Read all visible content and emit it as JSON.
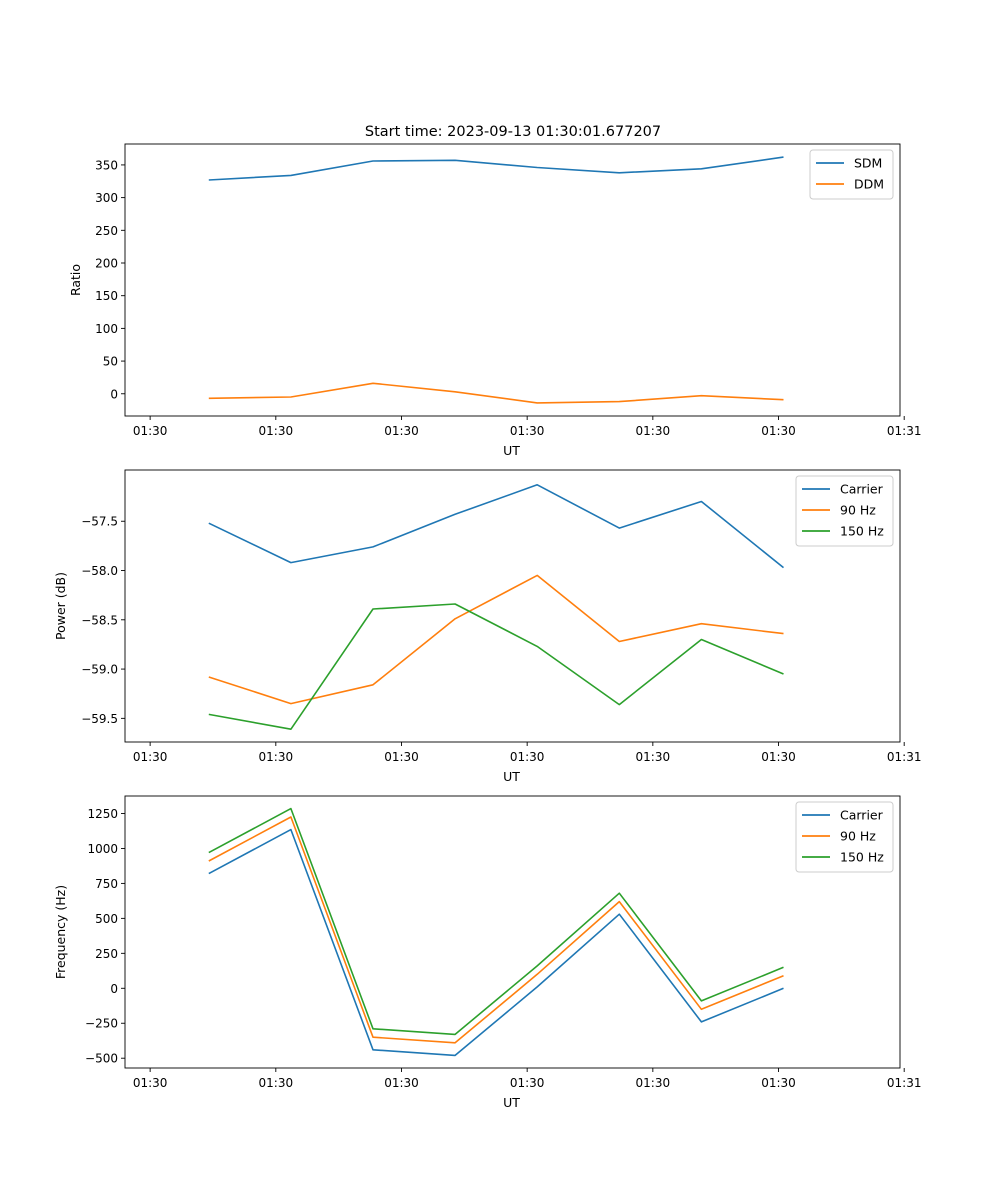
{
  "figure": {
    "title": "Start time: 2023-09-13 01:30:01.677207"
  },
  "chart_data": [
    {
      "type": "line",
      "title": "Start time: 2023-09-13 01:30:01.677207",
      "xlabel": "UT",
      "ylabel": "Ratio",
      "xlim": [
        -0.3,
        8.95
      ],
      "ylim": [
        -34,
        382
      ],
      "xticks": [
        0,
        1.5,
        3,
        4.5,
        6,
        7.5,
        9
      ],
      "xtick_labels": [
        "01:30",
        "01:30",
        "01:30",
        "01:30",
        "01:30",
        "01:30",
        "01:31"
      ],
      "yticks": [
        0,
        50,
        100,
        150,
        200,
        250,
        300,
        350
      ],
      "ytick_labels": [
        "0",
        "50",
        "100",
        "150",
        "200",
        "250",
        "300",
        "350"
      ],
      "legend": "top-right",
      "x": [
        0.7,
        1.68,
        2.66,
        3.64,
        4.62,
        5.6,
        6.58,
        7.56
      ],
      "series": [
        {
          "name": "SDM",
          "color": "#1f77b4",
          "values": [
            327,
            334,
            356,
            357,
            346,
            338,
            344,
            362
          ]
        },
        {
          "name": "DDM",
          "color": "#ff7f0e",
          "values": [
            -7,
            -5,
            16,
            3,
            -14,
            -12,
            -3,
            -9
          ]
        }
      ]
    },
    {
      "type": "line",
      "xlabel": "UT",
      "ylabel": "Power (dB)",
      "xlim": [
        -0.3,
        8.95
      ],
      "ylim": [
        -59.74,
        -56.98
      ],
      "xticks": [
        0,
        1.5,
        3,
        4.5,
        6,
        7.5,
        9
      ],
      "xtick_labels": [
        "01:30",
        "01:30",
        "01:30",
        "01:30",
        "01:30",
        "01:30",
        "01:31"
      ],
      "yticks": [
        -59.5,
        -59.0,
        -58.5,
        -58.0,
        -57.5
      ],
      "ytick_labels": [
        "−59.5",
        "−59.0",
        "−58.5",
        "−58.0",
        "−57.5"
      ],
      "legend": "top-right",
      "x": [
        0.7,
        1.68,
        2.66,
        3.64,
        4.62,
        5.6,
        6.58,
        7.56
      ],
      "series": [
        {
          "name": "Carrier",
          "color": "#1f77b4",
          "values": [
            -57.52,
            -57.92,
            -57.76,
            -57.43,
            -57.13,
            -57.57,
            -57.3,
            -57.97
          ]
        },
        {
          "name": "90 Hz",
          "color": "#ff7f0e",
          "values": [
            -59.08,
            -59.35,
            -59.16,
            -58.49,
            -58.05,
            -58.72,
            -58.54,
            -58.64
          ]
        },
        {
          "name": "150 Hz",
          "color": "#2ca02c",
          "values": [
            -59.46,
            -59.61,
            -58.39,
            -58.34,
            -58.77,
            -59.36,
            -58.7,
            -59.05
          ]
        }
      ]
    },
    {
      "type": "line",
      "xlabel": "UT",
      "ylabel": "Frequency (Hz)",
      "xlim": [
        -0.3,
        8.95
      ],
      "ylim": [
        -570,
        1375
      ],
      "xticks": [
        0,
        1.5,
        3,
        4.5,
        6,
        7.5,
        9
      ],
      "xtick_labels": [
        "01:30",
        "01:30",
        "01:30",
        "01:30",
        "01:30",
        "01:30",
        "01:31"
      ],
      "yticks": [
        -500,
        -250,
        0,
        250,
        500,
        750,
        1000,
        1250
      ],
      "ytick_labels": [
        "−500",
        "−250",
        "0",
        "250",
        "500",
        "750",
        "1000",
        "1250"
      ],
      "legend": "top-right",
      "x": [
        0.7,
        1.68,
        2.66,
        3.64,
        4.62,
        5.6,
        6.58,
        7.56
      ],
      "series": [
        {
          "name": "Carrier",
          "color": "#1f77b4",
          "values": [
            820,
            1135,
            -440,
            -480,
            10,
            530,
            -240,
            0
          ]
        },
        {
          "name": "90 Hz",
          "color": "#ff7f0e",
          "values": [
            910,
            1225,
            -350,
            -390,
            100,
            620,
            -150,
            90
          ]
        },
        {
          "name": "150 Hz",
          "color": "#2ca02c",
          "values": [
            970,
            1285,
            -290,
            -330,
            160,
            680,
            -90,
            150
          ]
        }
      ]
    }
  ]
}
